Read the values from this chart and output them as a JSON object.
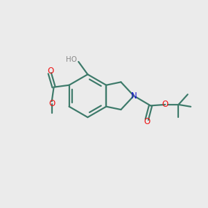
{
  "background_color": "#ebebeb",
  "bond_color": "#3d7a6a",
  "atom_colors": {
    "O": "#ee1111",
    "N": "#1111cc",
    "H": "#888888"
  },
  "figsize": [
    3.0,
    3.0
  ],
  "dpi": 100
}
